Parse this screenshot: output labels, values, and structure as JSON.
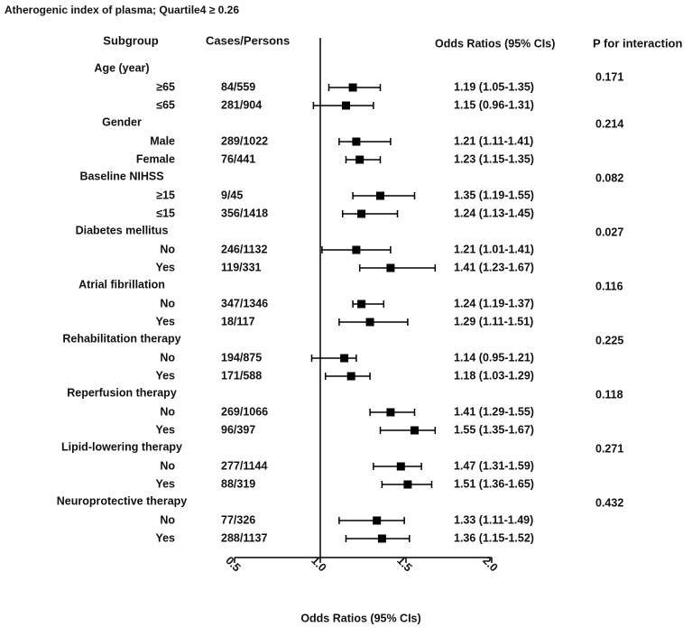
{
  "chart_data": {
    "type": "forest",
    "title": "Atherogenic index of plasma; Quartile4 ≥ 0.26",
    "column_headers": [
      "Subgroup",
      "Cases/Persons",
      "Odds Ratios (95% CIs)",
      "P for interaction"
    ],
    "xlabel": "Odds Ratios (95% CIs)",
    "xlim": [
      0.5,
      2.0
    ],
    "xticks": [
      0.5,
      {
        "value": 1,
        "label": "1.0"
      },
      1.5,
      {
        "value": 2,
        "label": "2.0"
      }
    ],
    "reference_line": 1,
    "color": "#000000",
    "groups": [
      {
        "name": "Age (year)",
        "p": 0.171,
        "subgroups": [
          "≥65",
          "≤65"
        ],
        "cases": [
          "84/559",
          "281/904"
        ],
        "values": [
          1.19,
          1.15
        ],
        "lower": [
          1.05,
          0.96
        ],
        "upper": [
          1.35,
          1.31
        ],
        "value_labels": [
          "1.19 (1.05-1.35)",
          "1.15 (0.96-1.31)"
        ]
      },
      {
        "name": "Gender",
        "p": 0.214,
        "subgroups": [
          "Male",
          "Female"
        ],
        "cases": [
          "289/1022",
          "76/441"
        ],
        "values": [
          1.21,
          1.23
        ],
        "lower": [
          1.11,
          1.15
        ],
        "upper": [
          1.41,
          1.35
        ],
        "value_labels": [
          "1.21 (1.11-1.41)",
          "1.23 (1.15-1.35)"
        ]
      },
      {
        "name": "Baseline NIHSS",
        "p": 0.082,
        "subgroups": [
          "≥15",
          "≤15"
        ],
        "cases": [
          "9/45",
          "356/1418"
        ],
        "values": [
          1.35,
          1.24
        ],
        "lower": [
          1.19,
          1.13
        ],
        "upper": [
          1.55,
          1.45
        ],
        "value_labels": [
          "1.35 (1.19-1.55)",
          "1.24 (1.13-1.45)"
        ]
      },
      {
        "name": "Diabetes mellitus",
        "p": 0.027,
        "subgroups": [
          "No",
          "Yes"
        ],
        "cases": [
          "246/1132",
          "119/331"
        ],
        "values": [
          1.21,
          1.41
        ],
        "lower": [
          1.01,
          1.23
        ],
        "upper": [
          1.41,
          1.67
        ],
        "value_labels": [
          "1.21 (1.01-1.41)",
          "1.41 (1.23-1.67)"
        ]
      },
      {
        "name": "Atrial fibrillation",
        "p": 0.116,
        "subgroups": [
          "No",
          "Yes"
        ],
        "cases": [
          "347/1346",
          "18/117"
        ],
        "values": [
          1.24,
          1.29
        ],
        "lower": [
          1.19,
          1.11
        ],
        "upper": [
          1.37,
          1.51
        ],
        "value_labels": [
          "1.24 (1.19-1.37)",
          "1.29 (1.11-1.51)"
        ]
      },
      {
        "name": "Rehabilitation therapy",
        "p": 0.225,
        "subgroups": [
          "No",
          "Yes"
        ],
        "cases": [
          "194/875",
          "171/588"
        ],
        "values": [
          1.14,
          1.18
        ],
        "lower": [
          0.95,
          1.03
        ],
        "upper": [
          1.21,
          1.29
        ],
        "value_labels": [
          "1.14 (0.95-1.21)",
          "1.18 (1.03-1.29)"
        ]
      },
      {
        "name": "Reperfusion therapy",
        "p": 0.118,
        "subgroups": [
          "No",
          "Yes"
        ],
        "cases": [
          "269/1066",
          "96/397"
        ],
        "values": [
          1.41,
          1.55
        ],
        "lower": [
          1.29,
          1.35
        ],
        "upper": [
          1.55,
          1.67
        ],
        "value_labels": [
          "1.41 (1.29-1.55)",
          "1.55 (1.35-1.67)"
        ]
      },
      {
        "name": "Lipid-lowering therapy",
        "p": 0.271,
        "subgroups": [
          "No",
          "Yes"
        ],
        "cases": [
          "277/1144",
          "88/319"
        ],
        "values": [
          1.47,
          1.51
        ],
        "lower": [
          1.31,
          1.36
        ],
        "upper": [
          1.59,
          1.65
        ],
        "value_labels": [
          "1.47 (1.31-1.59)",
          "1.51 (1.36-1.65)"
        ]
      },
      {
        "name": "Neuroprotective therapy",
        "p": 0.432,
        "subgroups": [
          "No",
          "Yes"
        ],
        "cases": [
          "77/326",
          "288/1137"
        ],
        "values": [
          1.33,
          1.36
        ],
        "lower": [
          1.11,
          1.15
        ],
        "upper": [
          1.49,
          1.52
        ],
        "value_labels": [
          "1.33 (1.11-1.49)",
          "1.36 (1.15-1.52)"
        ]
      }
    ]
  }
}
